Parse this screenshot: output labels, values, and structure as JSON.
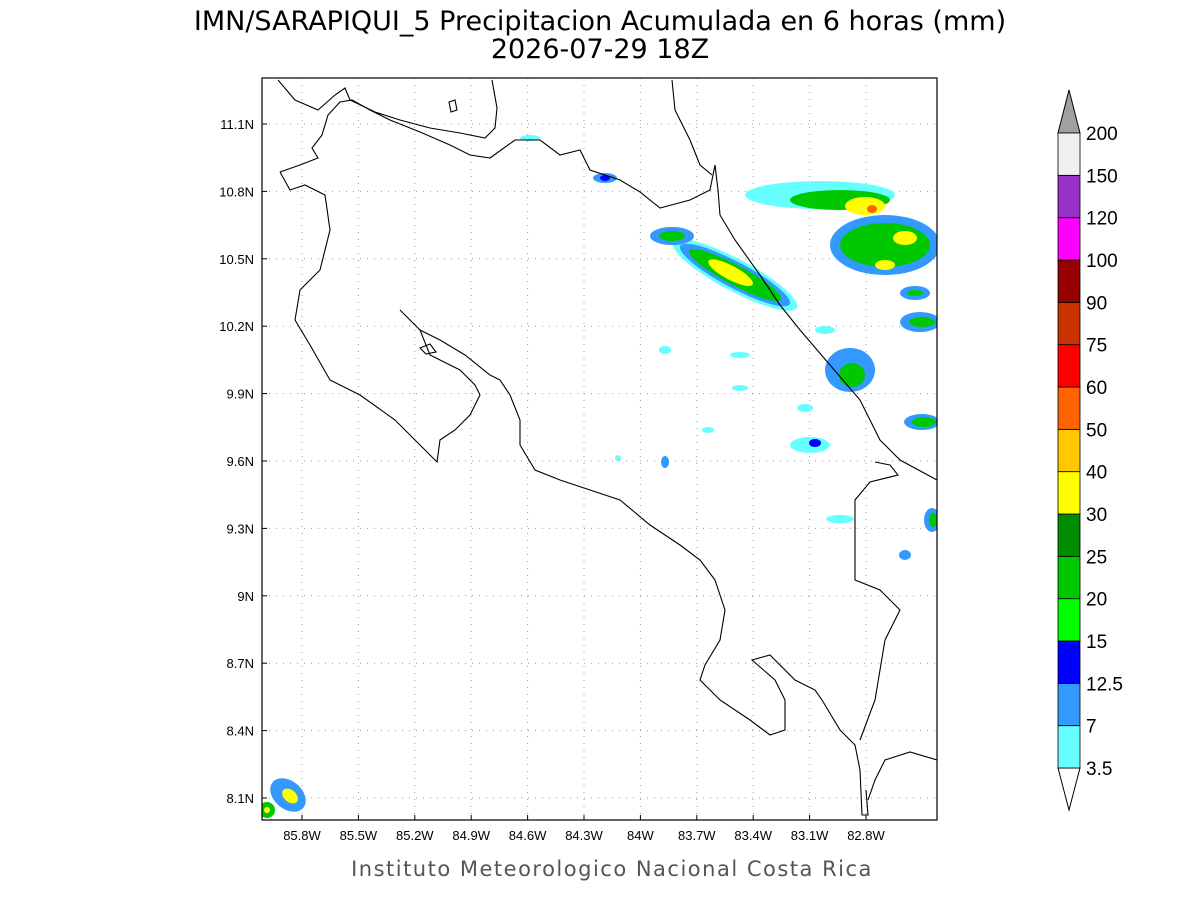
{
  "title": "IMN/SARAPIQUI_5 Precipitacion Acumulada en 6 horas (mm)",
  "subtitle": "2026-07-29 18Z",
  "map": {
    "lon_ticks": [
      "85.8W",
      "85.5W",
      "85.2W",
      "84.9W",
      "84.6W",
      "84.3W",
      "84W",
      "83.7W",
      "83.4W",
      "83.1W",
      "82.8W"
    ],
    "lat_ticks": [
      "11.1N",
      "10.8N",
      "10.5N",
      "10.2N",
      "9.9N",
      "9.6N",
      "9.3N",
      "9N",
      "8.7N",
      "8.4N",
      "8.1N"
    ]
  },
  "colorbar": {
    "labels": [
      "3.5",
      "7",
      "12.5",
      "15",
      "20",
      "25",
      "30",
      "40",
      "50",
      "60",
      "75",
      "90",
      "100",
      "120",
      "150",
      "200"
    ],
    "colors": [
      "#66ffff",
      "#3399ff",
      "#0000ff",
      "#00ff00",
      "#00c800",
      "#008c00",
      "#ffff00",
      "#ffc800",
      "#ff6400",
      "#ff0000",
      "#c83200",
      "#960000",
      "#ff00ff",
      "#9632c8",
      "#f0f0f0"
    ],
    "under_color": "#ffffff",
    "over_color": "#a0a0a0"
  },
  "footer": "Instituto Meteorologico Nacional Costa Rica"
}
